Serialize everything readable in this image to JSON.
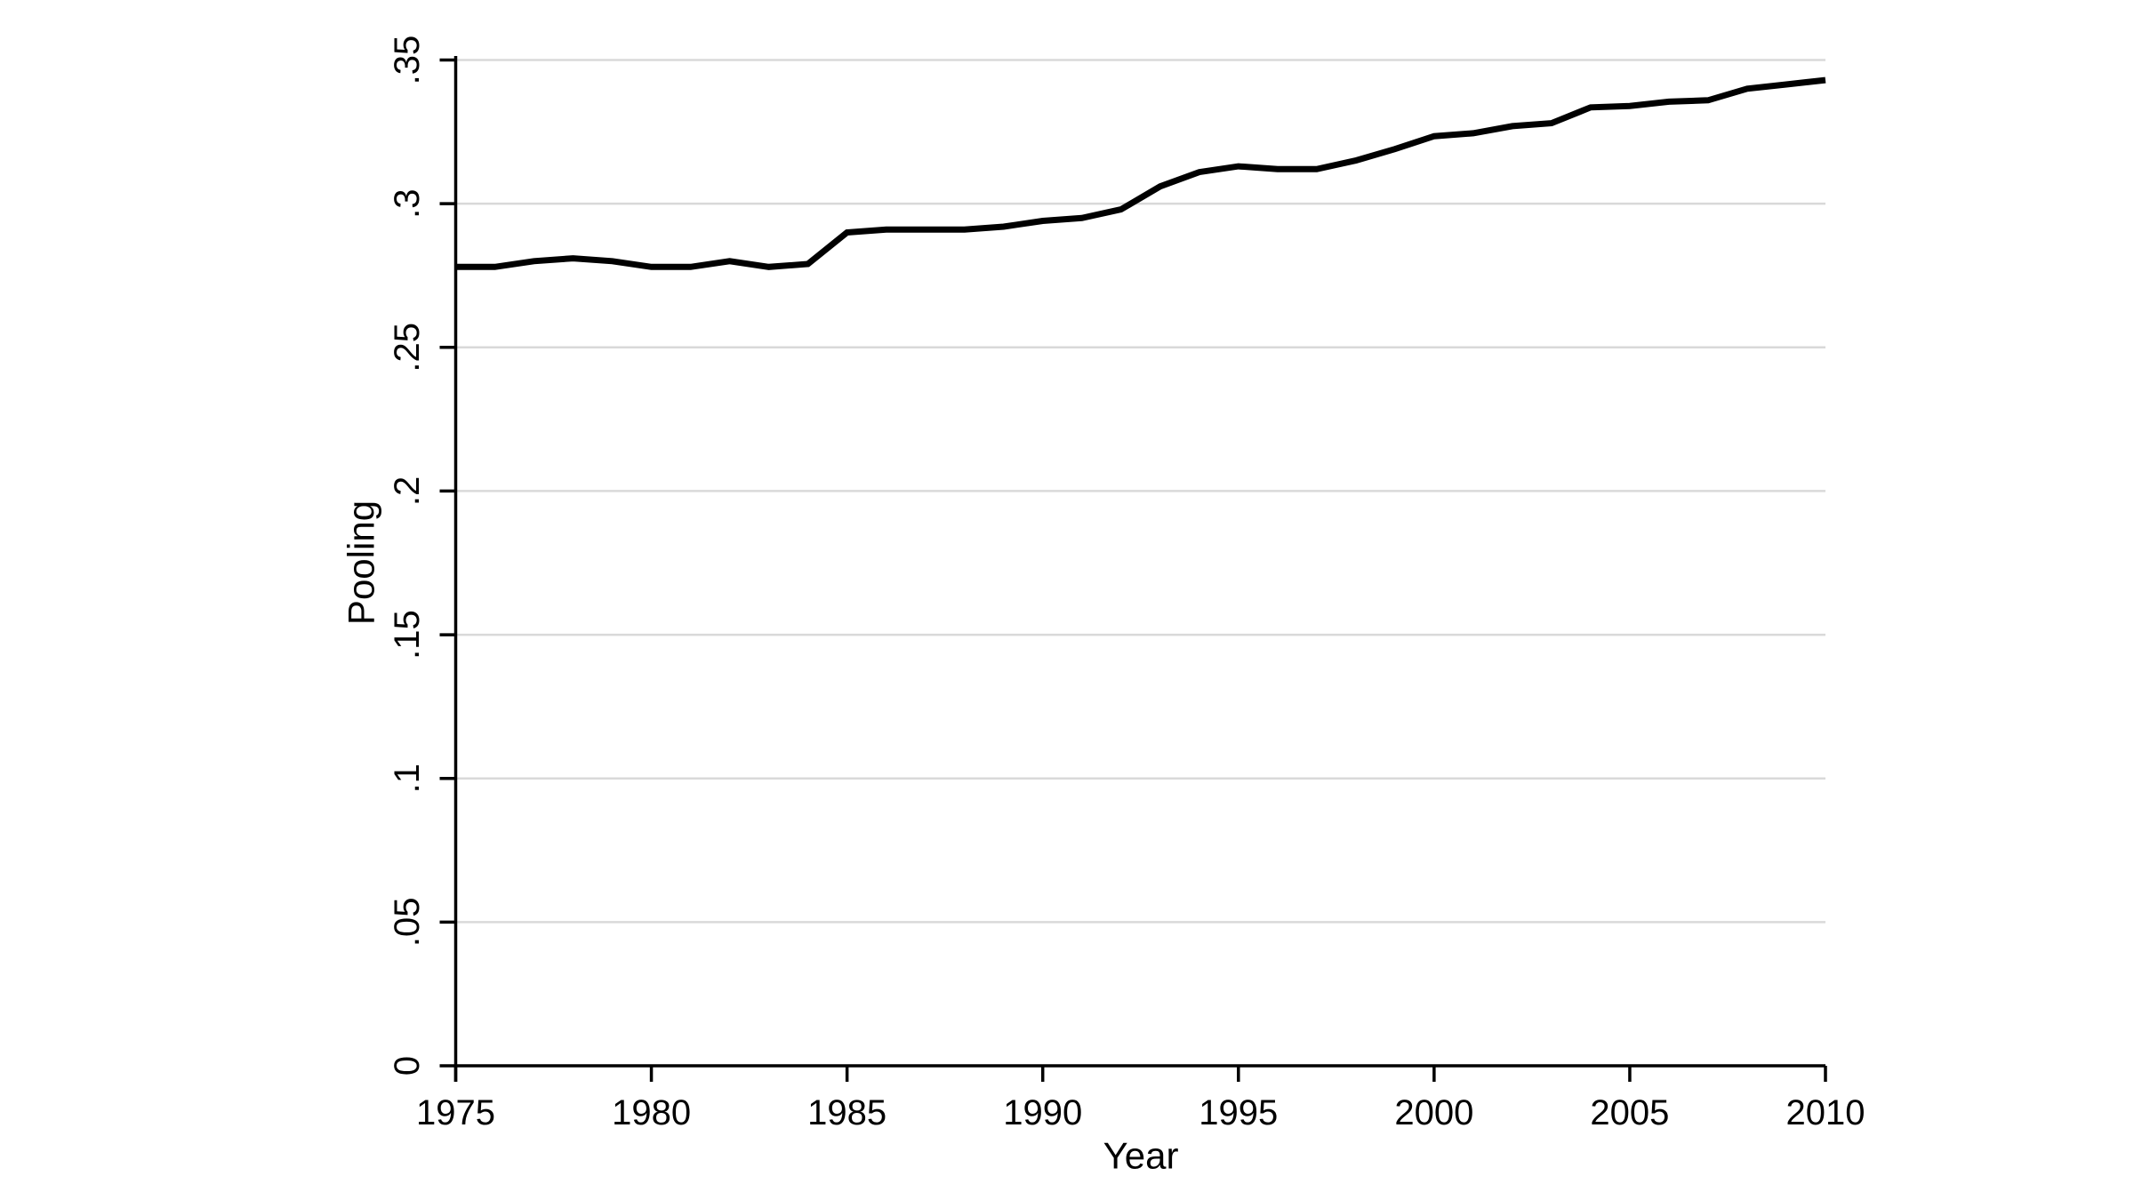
{
  "chart_data": {
    "type": "line",
    "title": "",
    "xlabel": "Year",
    "ylabel": "Pooling",
    "x": [
      1975,
      1976,
      1977,
      1978,
      1979,
      1980,
      1981,
      1982,
      1983,
      1984,
      1985,
      1986,
      1987,
      1988,
      1989,
      1990,
      1991,
      1992,
      1993,
      1994,
      1995,
      1996,
      1997,
      1998,
      1999,
      2000,
      2001,
      2002,
      2003,
      2004,
      2005,
      2006,
      2007,
      2008,
      2009,
      2010
    ],
    "series": [
      {
        "name": "Pooling",
        "values": [
          0.278,
          0.278,
          0.28,
          0.281,
          0.28,
          0.278,
          0.278,
          0.28,
          0.278,
          0.279,
          0.29,
          0.291,
          0.291,
          0.291,
          0.292,
          0.294,
          0.295,
          0.298,
          0.306,
          0.311,
          0.313,
          0.312,
          0.312,
          0.315,
          0.319,
          0.3235,
          0.3245,
          0.327,
          0.328,
          0.3335,
          0.334,
          0.3355,
          0.336,
          0.34,
          0.3415,
          0.343
        ]
      }
    ],
    "xlim": [
      1975,
      2010
    ],
    "ylim": [
      0,
      0.35
    ],
    "xticks": {
      "values": [
        1975,
        1980,
        1985,
        1990,
        1995,
        2000,
        2005,
        2010
      ],
      "labels": [
        "1975",
        "1980",
        "1985",
        "1990",
        "1995",
        "2000",
        "2005",
        "2010"
      ]
    },
    "yticks": {
      "values": [
        0,
        0.05,
        0.1,
        0.15,
        0.2,
        0.25,
        0.3,
        0.35
      ],
      "labels": [
        "0",
        ".05",
        ".1",
        ".15",
        ".2",
        ".25",
        ".3",
        ".35"
      ]
    },
    "grid": "horizontal-only",
    "legend": "none",
    "y_tick_label_rotation_deg": 90,
    "colors": {
      "line": "#000000",
      "grid": "#d9d9d9",
      "axis": "#000000",
      "text": "#000000",
      "background": "#ffffff"
    }
  }
}
